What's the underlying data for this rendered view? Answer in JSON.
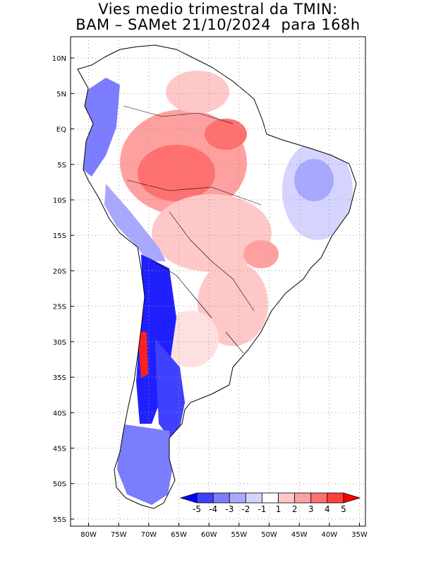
{
  "title": {
    "line1": "Vies medio trimestral da TMIN:",
    "line2": "BAM – SAMet 21/10/2024  para 168h"
  },
  "axes": {
    "lat_labels": [
      "10N",
      "5N",
      "EQ",
      "5S",
      "10S",
      "15S",
      "20S",
      "25S",
      "30S",
      "35S",
      "40S",
      "45S",
      "50S",
      "55S"
    ],
    "lon_labels": [
      "80W",
      "75W",
      "70W",
      "65W",
      "60W",
      "55W",
      "50W",
      "45W",
      "40W",
      "35W"
    ]
  },
  "colorbar": {
    "labels": [
      "-5",
      "-4",
      "-3",
      "-2",
      "-1",
      "1",
      "2",
      "3",
      "4",
      "5"
    ],
    "colors": [
      "#0000ff",
      "#4040ff",
      "#7c7cff",
      "#a8a8ff",
      "#d4d4ff",
      "#ffffff",
      "#ffc8c8",
      "#ffa0a0",
      "#ff7070",
      "#ff4040",
      "#ff0000"
    ]
  },
  "map": {
    "projection": "lat-lon",
    "lon_range": [
      -83,
      -34
    ],
    "lat_range": [
      -56,
      13
    ],
    "grid": "dotted",
    "field": "TMIN bias"
  }
}
